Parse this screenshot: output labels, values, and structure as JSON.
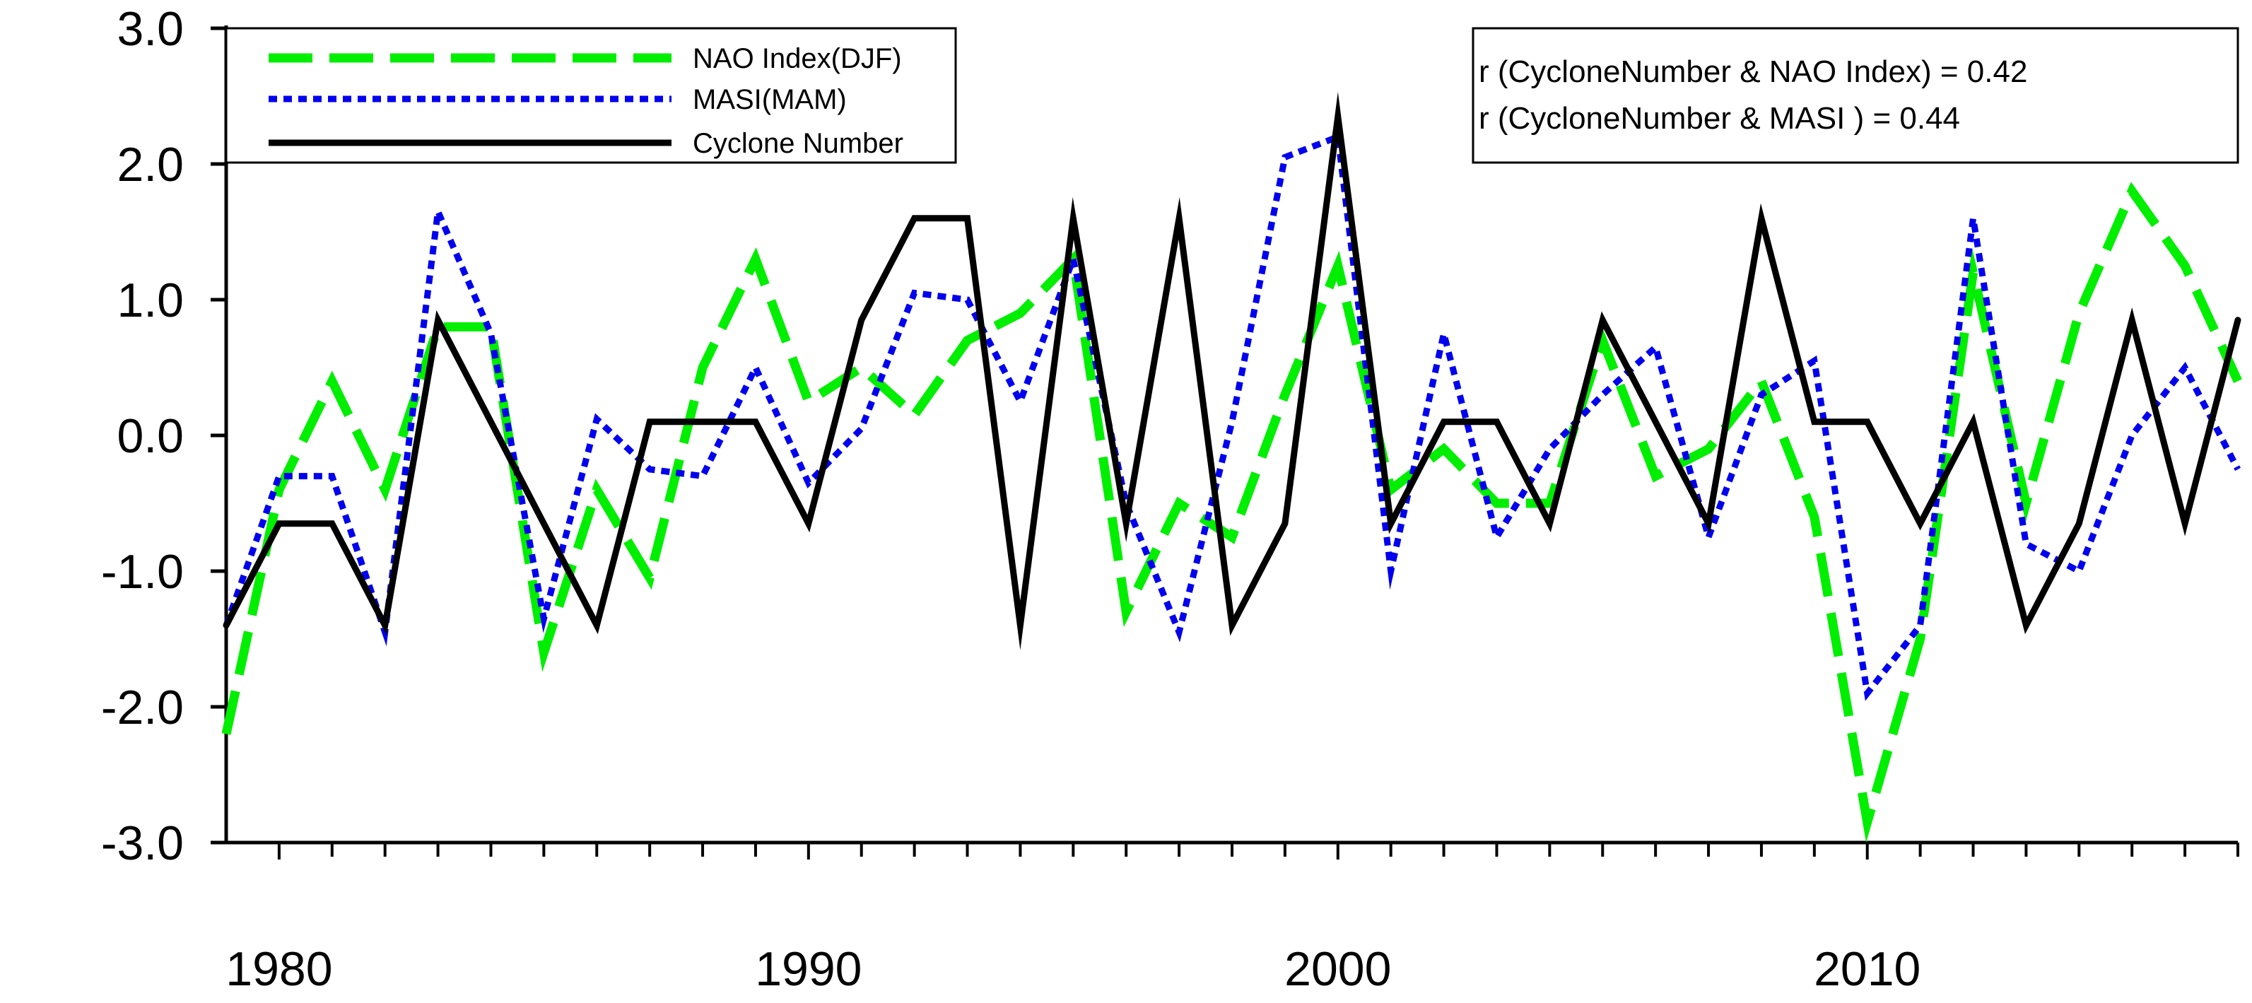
{
  "chart_data": {
    "type": "line",
    "title": "",
    "xlabel": "",
    "ylabel": "",
    "xlim": [
      1979,
      2017
    ],
    "ylim": [
      -3.0,
      3.0
    ],
    "x_ticks": [
      1980,
      1990,
      2000,
      2010
    ],
    "x_tick_labels": [
      "1980",
      "1990",
      "2000",
      "2010"
    ],
    "y_ticks": [
      3.0,
      2.0,
      1.0,
      0.0,
      -1.0,
      -2.0,
      -3.0
    ],
    "y_tick_labels": [
      "3.0",
      "2.0",
      "1.0",
      "0.0",
      "-1.0",
      "-2.0",
      "-3.0"
    ],
    "grid": false,
    "legend_position": "top-left",
    "x": [
      1979,
      1980,
      1981,
      1982,
      1983,
      1984,
      1985,
      1986,
      1987,
      1988,
      1989,
      1990,
      1991,
      1992,
      1993,
      1994,
      1995,
      1996,
      1997,
      1998,
      1999,
      2000,
      2001,
      2002,
      2003,
      2004,
      2005,
      2006,
      2007,
      2008,
      2009,
      2010,
      2011,
      2012,
      2013,
      2014,
      2015,
      2016,
      2017
    ],
    "series": [
      {
        "name": "NAO Index(DJF)",
        "color": "#00ee00",
        "style": "dashed",
        "values": [
          -2.2,
          -0.4,
          0.4,
          -0.4,
          0.8,
          0.8,
          -1.6,
          -0.4,
          -1.05,
          0.5,
          1.3,
          0.25,
          0.5,
          0.15,
          0.7,
          0.9,
          1.3,
          -1.3,
          -0.5,
          -0.75,
          0.3,
          1.25,
          -0.4,
          -0.1,
          -0.5,
          -0.5,
          0.7,
          -0.3,
          -0.1,
          0.4,
          -0.6,
          -2.85,
          -1.5,
          1.2,
          -0.5,
          0.9,
          1.8,
          1.25,
          0.4
        ]
      },
      {
        "name": "MASI(MAM)",
        "color": "#0000ee",
        "style": "dotted",
        "values": [
          -1.4,
          -0.3,
          -0.3,
          -1.45,
          1.65,
          0.75,
          -1.35,
          0.12,
          -0.25,
          -0.3,
          0.5,
          -0.35,
          0.05,
          1.05,
          1.0,
          0.25,
          1.3,
          -0.5,
          -1.45,
          0.1,
          2.05,
          2.2,
          -1.0,
          0.75,
          -0.75,
          -0.1,
          0.3,
          0.65,
          -0.75,
          0.3,
          0.55,
          -1.9,
          -1.4,
          1.6,
          -0.8,
          -1.0,
          0.0,
          0.5,
          -0.25
        ]
      },
      {
        "name": "Cyclone Number",
        "color": "#000000",
        "style": "solid",
        "values": [
          -1.4,
          -0.65,
          -0.65,
          -1.4,
          0.85,
          0.1,
          -0.65,
          -1.4,
          0.1,
          0.1,
          0.1,
          -0.65,
          0.85,
          1.6,
          1.6,
          -1.4,
          1.6,
          -0.65,
          1.6,
          -1.4,
          -0.65,
          2.35,
          -0.65,
          0.1,
          0.1,
          -0.65,
          0.85,
          0.1,
          -0.65,
          1.6,
          0.1,
          0.1,
          -0.65,
          0.1,
          -1.4,
          -0.65,
          0.85,
          -0.65,
          0.85
        ]
      }
    ],
    "annotations": [
      "r (CycloneNumber & NAO Index) = 0.42",
      "r (CycloneNumber & MASI ) = 0.44"
    ]
  }
}
